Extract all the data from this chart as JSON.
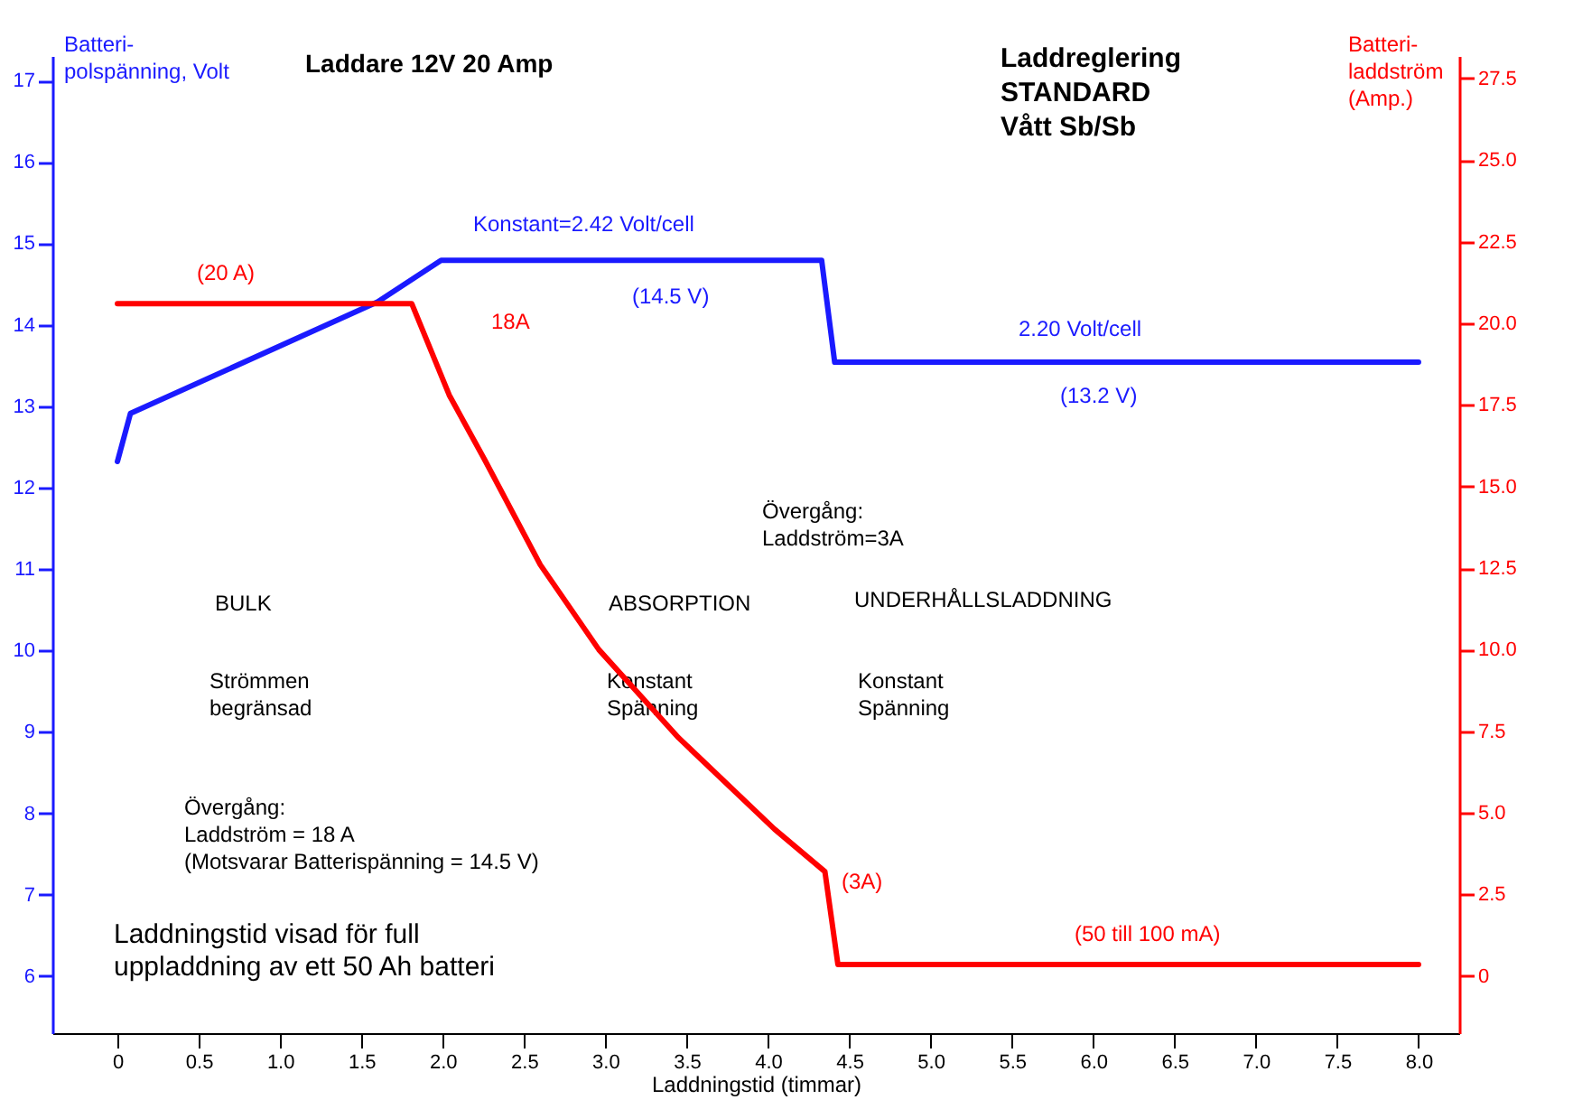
{
  "chart_data": {
    "type": "line",
    "title": "Laddare 12V 20 Amp",
    "subtitle": "Laddreglering\nSTANDARD\nVått Sb/Sb",
    "xlabel": "Laddningstid (timmar)",
    "ylabel": "Batteri-\npolspänning, Volt",
    "y2label": "Batteri-\nladdström\n(Amp.)",
    "series": [
      {
        "color": "#1a1aff",
        "x": [
          0,
          0.08,
          1.6,
          1.99,
          4.33,
          4.41,
          8.0
        ],
        "values": [
          12.32,
          12.91,
          14.28,
          14.79,
          14.79,
          13.54,
          13.54
        ]
      },
      {
        "color": "#ff0000",
        "axis": "y2",
        "x": [
          0,
          1.81,
          2.04,
          2.26,
          2.6,
          2.96,
          3.45,
          4.04,
          4.35,
          4.43,
          8.0
        ],
        "values": [
          20.6,
          20.6,
          17.8,
          15.8,
          12.6,
          10.0,
          7.3,
          4.5,
          3.2,
          0.35,
          0.35
        ]
      }
    ],
    "xlim": [
      -0.4,
      8.25
    ],
    "ylim": [
      5.3,
      17.3
    ],
    "y2lim": [
      -1.75,
      28.19
    ],
    "xticks": [
      0,
      0.5,
      {
        "value": 1,
        "label": "1.0"
      },
      1.5,
      {
        "value": 2,
        "label": "2.0"
      },
      2.5,
      {
        "value": 3,
        "label": "3.0"
      },
      3.5,
      {
        "value": 4,
        "label": "4.0"
      },
      4.5,
      {
        "value": 5,
        "label": "5.0"
      },
      5.5,
      {
        "value": 6,
        "label": "6.0"
      },
      6.5,
      {
        "value": 7,
        "label": "7.0"
      },
      7.5,
      {
        "value": 8,
        "label": "8.0"
      }
    ],
    "yticks": [
      6,
      7,
      8,
      9,
      10,
      11,
      12,
      13,
      14,
      15,
      16,
      17
    ],
    "y2ticks": [
      0,
      2.5,
      {
        "value": 5,
        "label": "5.0"
      },
      7.5,
      {
        "value": 10,
        "label": "10.0"
      },
      12.5,
      {
        "value": 15,
        "label": "15.0"
      },
      17.5,
      {
        "value": 20,
        "label": "20.0"
      },
      22.5,
      {
        "value": 25,
        "label": "25.0"
      },
      27.5
    ],
    "grid": false,
    "line_style": "solid",
    "marker": "none",
    "annotations": [
      "(20 A)",
      "Konstant=2.42 Volt/cell",
      "(14.5 V)",
      "18A",
      "2.20 Volt/cell",
      "(13.2 V)",
      "Övergång:\nLaddström=3A",
      "BULK",
      "ABSORPTION",
      "UNDERHÅLLSLADDNING",
      "Strömmen\nbegränsad",
      "Konstant\nSpänning",
      "Konstant\nSpänning",
      "Övergång:\nLaddström = 18 A\n(Motsvarar Batterispänning = 14.5 V)",
      "Laddningstid visad för full\nuppladdning av ett 50 Ah batteri",
      "(3A)",
      "(50 till 100 mA)"
    ]
  }
}
